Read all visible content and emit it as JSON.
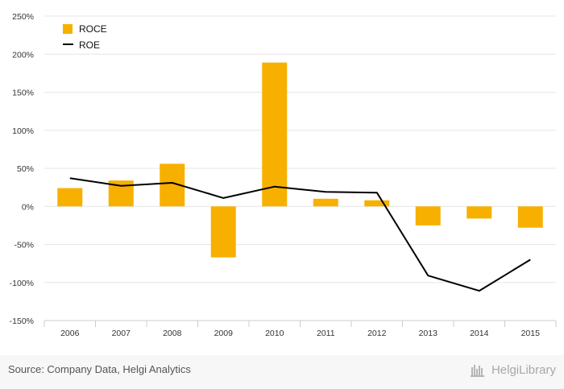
{
  "chart_data": {
    "type": "bar",
    "title": "",
    "xlabel": "",
    "ylabel": "",
    "categories": [
      "2006",
      "2007",
      "2008",
      "2009",
      "2010",
      "2011",
      "2012",
      "2013",
      "2014",
      "2015"
    ],
    "series": [
      {
        "name": "ROCE",
        "type": "bar",
        "color": "#F7B000",
        "values": [
          24,
          34,
          56,
          -67,
          189,
          10,
          8,
          -25,
          -16,
          -28
        ]
      },
      {
        "name": "ROE",
        "type": "line",
        "color": "#000000",
        "values": [
          37,
          27,
          31,
          11,
          26,
          19,
          18,
          -91,
          -111,
          -70
        ]
      }
    ],
    "ylim": [
      -150,
      250
    ],
    "yticks": [
      -150,
      -100,
      -50,
      0,
      50,
      100,
      150,
      200,
      250
    ],
    "ytick_labels": [
      "-150%",
      "-100%",
      "-50%",
      "0%",
      "50%",
      "100%",
      "150%",
      "200%",
      "250%"
    ],
    "grid": true,
    "legend_position": "top-left"
  },
  "footer": {
    "source": "Source: Company Data, Helgi Analytics",
    "brand": "HelgiLibrary"
  },
  "colors": {
    "bar": "#F7B000",
    "line": "#000000",
    "grid": "#e6e6e6"
  }
}
